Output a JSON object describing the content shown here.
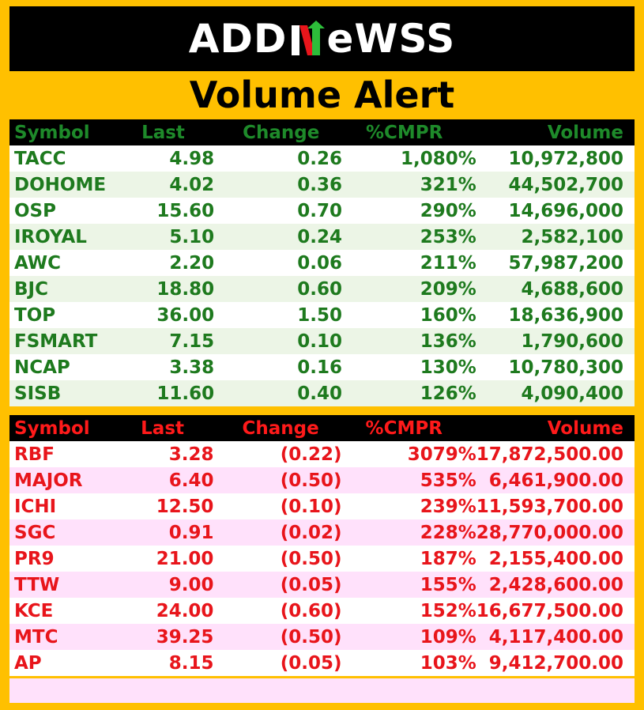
{
  "logo": {
    "text_left": "ADD",
    "text_right": "eWSS",
    "icon": "n-chart-mark-icon"
  },
  "title": "Volume Alert",
  "colors": {
    "background": "#ffc000",
    "gainer": "#1e7a1e",
    "loser": "#e8151b"
  },
  "gainers": {
    "headers": [
      "Symbol",
      "Last",
      "Change",
      "%CMPR",
      "Volume"
    ],
    "rows": [
      [
        "TACC",
        "4.98",
        "0.26",
        "1,080%",
        "10,972,800"
      ],
      [
        "DOHOME",
        "4.02",
        "0.36",
        "321%",
        "44,502,700"
      ],
      [
        "OSP",
        "15.60",
        "0.70",
        "290%",
        "14,696,000"
      ],
      [
        "IROYAL",
        "5.10",
        "0.24",
        "253%",
        "2,582,100"
      ],
      [
        "AWC",
        "2.20",
        "0.06",
        "211%",
        "57,987,200"
      ],
      [
        "BJC",
        "18.80",
        "0.60",
        "209%",
        "4,688,600"
      ],
      [
        "TOP",
        "36.00",
        "1.50",
        "160%",
        "18,636,900"
      ],
      [
        "FSMART",
        "7.15",
        "0.10",
        "136%",
        "1,790,600"
      ],
      [
        "NCAP",
        "3.38",
        "0.16",
        "130%",
        "10,780,300"
      ],
      [
        "SISB",
        "11.60",
        "0.40",
        "126%",
        "4,090,400"
      ]
    ]
  },
  "losers": {
    "headers": [
      "Symbol",
      "Last",
      "Change",
      "%CMPR",
      "Volume"
    ],
    "rows": [
      [
        "RBF",
        "3.28",
        "(0.22)",
        "3079%",
        "17,872,500.00"
      ],
      [
        "MAJOR",
        "6.40",
        "(0.50)",
        "535%",
        "6,461,900.00"
      ],
      [
        "ICHI",
        "12.50",
        "(0.10)",
        "239%",
        "11,593,700.00"
      ],
      [
        "SGC",
        "0.91",
        "(0.02)",
        "228%",
        "28,770,000.00"
      ],
      [
        "PR9",
        "21.00",
        "(0.50)",
        "187%",
        "2,155,400.00"
      ],
      [
        "TTW",
        "9.00",
        "(0.05)",
        "155%",
        "2,428,600.00"
      ],
      [
        "KCE",
        "24.00",
        "(0.60)",
        "152%",
        "16,677,500.00"
      ],
      [
        "MTC",
        "39.25",
        "(0.50)",
        "109%",
        "4,117,400.00"
      ],
      [
        "AP",
        "8.15",
        "(0.05)",
        "103%",
        "9,412,700.00"
      ]
    ]
  }
}
